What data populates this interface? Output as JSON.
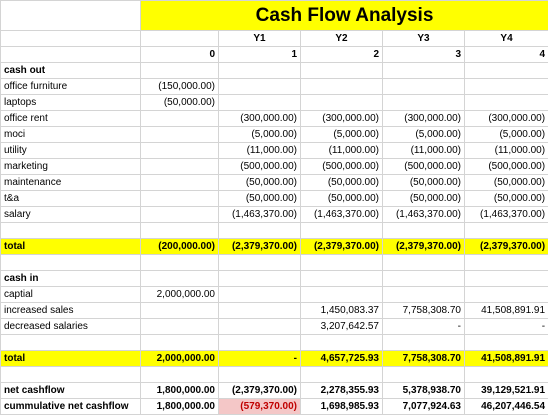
{
  "sheet": {
    "title": "Cash Flow Analysis",
    "year_labels": [
      "",
      "",
      "Y1",
      "Y2",
      "Y3",
      "Y4"
    ],
    "period_numbers": [
      "",
      "0",
      "1",
      "2",
      "3",
      "4"
    ],
    "sections": {
      "cash_out": "cash out",
      "cash_in": "cash in"
    },
    "cash_out_rows": [
      {
        "label": "office furniture",
        "values": [
          "(150,000.00)",
          "",
          "",
          "",
          ""
        ]
      },
      {
        "label": "laptops",
        "values": [
          "(50,000.00)",
          "",
          "",
          "",
          ""
        ]
      },
      {
        "label": "office rent",
        "values": [
          "",
          "(300,000.00)",
          "(300,000.00)",
          "(300,000.00)",
          "(300,000.00)"
        ]
      },
      {
        "label": "moci",
        "values": [
          "",
          "(5,000.00)",
          "(5,000.00)",
          "(5,000.00)",
          "(5,000.00)"
        ]
      },
      {
        "label": "utility",
        "values": [
          "",
          "(11,000.00)",
          "(11,000.00)",
          "(11,000.00)",
          "(11,000.00)"
        ]
      },
      {
        "label": "marketing",
        "values": [
          "",
          "(500,000.00)",
          "(500,000.00)",
          "(500,000.00)",
          "(500,000.00)"
        ]
      },
      {
        "label": "maintenance",
        "values": [
          "",
          "(50,000.00)",
          "(50,000.00)",
          "(50,000.00)",
          "(50,000.00)"
        ]
      },
      {
        "label": "t&a",
        "values": [
          "",
          "(50,000.00)",
          "(50,000.00)",
          "(50,000.00)",
          "(50,000.00)"
        ]
      },
      {
        "label": "salary",
        "values": [
          "",
          "(1,463,370.00)",
          "(1,463,370.00)",
          "(1,463,370.00)",
          "(1,463,370.00)"
        ]
      }
    ],
    "total_out": {
      "label": "total",
      "values": [
        "(200,000.00)",
        "(2,379,370.00)",
        "(2,379,370.00)",
        "(2,379,370.00)",
        "(2,379,370.00)"
      ]
    },
    "cash_in_rows": [
      {
        "label": "captial",
        "values": [
          "2,000,000.00",
          "",
          "",
          "",
          ""
        ]
      },
      {
        "label": "increased sales",
        "values": [
          "",
          "",
          "1,450,083.37",
          "7,758,308.70",
          "41,508,891.91"
        ]
      },
      {
        "label": "decreased salaries",
        "values": [
          "",
          "",
          "3,207,642.57",
          "-",
          "-"
        ]
      }
    ],
    "total_in": {
      "label": "total",
      "values": [
        "2,000,000.00",
        "-",
        "4,657,725.93",
        "7,758,308.70",
        "41,508,891.91"
      ]
    },
    "net_cashflow": {
      "label": "net cashflow",
      "values": [
        "1,800,000.00",
        "(2,379,370.00)",
        "2,278,355.93",
        "5,378,938.70",
        "39,129,521.91"
      ]
    },
    "cumulative": {
      "label": "cummulative net cashflow",
      "values": [
        "1,800,000.00",
        "(579,370.00)",
        "1,698,985.93",
        "7,077,924.63",
        "46,207,446.54"
      ]
    }
  },
  "colors": {
    "highlight": "#ffff00",
    "negative_highlight": "#f4c7c7",
    "negative_text": "#c00000"
  }
}
